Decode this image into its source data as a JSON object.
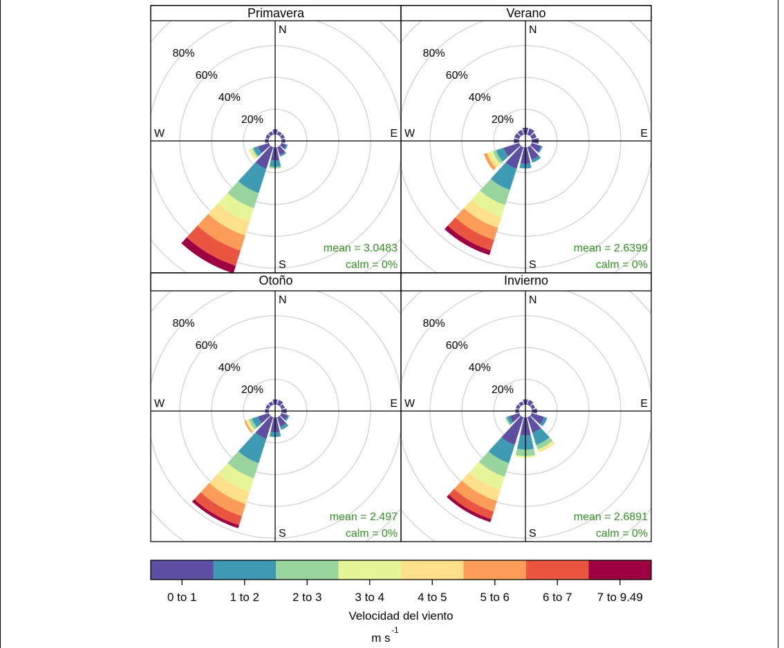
{
  "chart_data": {
    "type": "windrose",
    "legend": {
      "title": "Velocidad del viento",
      "units_base": "m s",
      "units_exp": "-1",
      "bins": [
        "0 to 1",
        "1 to 2",
        "2 to 3",
        "3 to 4",
        "4 to 5",
        "5 to 6",
        "6 to 7",
        "7 to 9.49"
      ],
      "colors": [
        "#5E4FA2",
        "#3E9AB3",
        "#99D49F",
        "#E6F598",
        "#FEE08B",
        "#FB9D59",
        "#E95541",
        "#9E0142"
      ]
    },
    "rings": [
      20,
      40,
      60,
      80
    ],
    "ring_labels": [
      "20%",
      "40%",
      "60%",
      "80%"
    ],
    "compass": [
      "N",
      "E",
      "S",
      "W"
    ],
    "panels": [
      {
        "title": "Primavera",
        "mean_label": "mean = 3.0483",
        "calm_label": "calm = 0%",
        "petals": [
          {
            "dir": 0,
            "values": [
              3
            ]
          },
          {
            "dir": 30,
            "values": [
              2
            ]
          },
          {
            "dir": 60,
            "values": [
              2
            ]
          },
          {
            "dir": 90,
            "values": [
              2
            ]
          },
          {
            "dir": 120,
            "values": [
              3,
              1
            ]
          },
          {
            "dir": 150,
            "values": [
              5,
              1
            ]
          },
          {
            "dir": 180,
            "values": [
              8,
              4,
              1
            ]
          },
          {
            "dir": 210,
            "values": [
              14,
              16,
              10,
              9,
              9,
              10,
              10,
              5
            ]
          },
          {
            "dir": 240,
            "values": [
              7,
              3,
              1,
              1,
              1
            ]
          },
          {
            "dir": 270,
            "values": [
              2
            ]
          },
          {
            "dir": 300,
            "values": [
              2
            ]
          },
          {
            "dir": 330,
            "values": [
              2
            ]
          }
        ]
      },
      {
        "title": "Verano",
        "mean_label": "mean = 2.6399",
        "calm_label": "calm = 0%",
        "petals": [
          {
            "dir": 0,
            "values": [
              4
            ]
          },
          {
            "dir": 30,
            "values": [
              4
            ]
          },
          {
            "dir": 60,
            "values": [
              3
            ]
          },
          {
            "dir": 90,
            "values": [
              4
            ]
          },
          {
            "dir": 120,
            "values": [
              6,
              1
            ]
          },
          {
            "dir": 150,
            "values": [
              8,
              2
            ]
          },
          {
            "dir": 180,
            "values": [
              10,
              3
            ]
          },
          {
            "dir": 210,
            "values": [
              14,
              14,
              10,
              8,
              7,
              8,
              7,
              3
            ]
          },
          {
            "dir": 240,
            "values": [
              10,
              5,
              2,
              2,
              2,
              2
            ]
          },
          {
            "dir": 270,
            "values": [
              3
            ]
          },
          {
            "dir": 300,
            "values": [
              3
            ]
          },
          {
            "dir": 330,
            "values": [
              3
            ]
          }
        ]
      },
      {
        "title": "Otoño",
        "mean_label": "mean = 2.497",
        "calm_label": "calm = 0%",
        "petals": [
          {
            "dir": 0,
            "values": [
              3
            ]
          },
          {
            "dir": 30,
            "values": [
              3
            ]
          },
          {
            "dir": 60,
            "values": [
              2
            ]
          },
          {
            "dir": 90,
            "values": [
              3
            ]
          },
          {
            "dir": 120,
            "values": [
              4,
              1
            ]
          },
          {
            "dir": 150,
            "values": [
              6,
              2
            ]
          },
          {
            "dir": 180,
            "values": [
              9,
              3
            ]
          },
          {
            "dir": 210,
            "values": [
              14,
              16,
              10,
              9,
              8,
              8,
              6,
              2
            ]
          },
          {
            "dir": 240,
            "values": [
              7,
              4,
              2,
              1,
              1,
              1
            ]
          },
          {
            "dir": 270,
            "values": [
              2
            ]
          },
          {
            "dir": 300,
            "values": [
              2
            ]
          },
          {
            "dir": 330,
            "values": [
              2
            ]
          }
        ]
      },
      {
        "title": "Invierno",
        "mean_label": "mean = 2.6891",
        "calm_label": "calm = 0%",
        "petals": [
          {
            "dir": 0,
            "values": [
              3
            ]
          },
          {
            "dir": 30,
            "values": [
              3
            ]
          },
          {
            "dir": 60,
            "values": [
              2
            ]
          },
          {
            "dir": 90,
            "values": [
              3
            ]
          },
          {
            "dir": 120,
            "values": [
              8,
              2
            ]
          },
          {
            "dir": 150,
            "values": [
              10,
              8,
              3,
              1,
              1
            ]
          },
          {
            "dir": 180,
            "values": [
              11,
              9,
              4,
              1
            ]
          },
          {
            "dir": 210,
            "values": [
              18,
              12,
              9,
              9,
              7,
              7,
              5,
              2
            ]
          },
          {
            "dir": 240,
            "values": [
              6,
              2,
              1
            ]
          },
          {
            "dir": 270,
            "values": [
              2
            ]
          },
          {
            "dir": 300,
            "values": [
              2
            ]
          },
          {
            "dir": 330,
            "values": [
              2
            ]
          }
        ]
      }
    ]
  }
}
